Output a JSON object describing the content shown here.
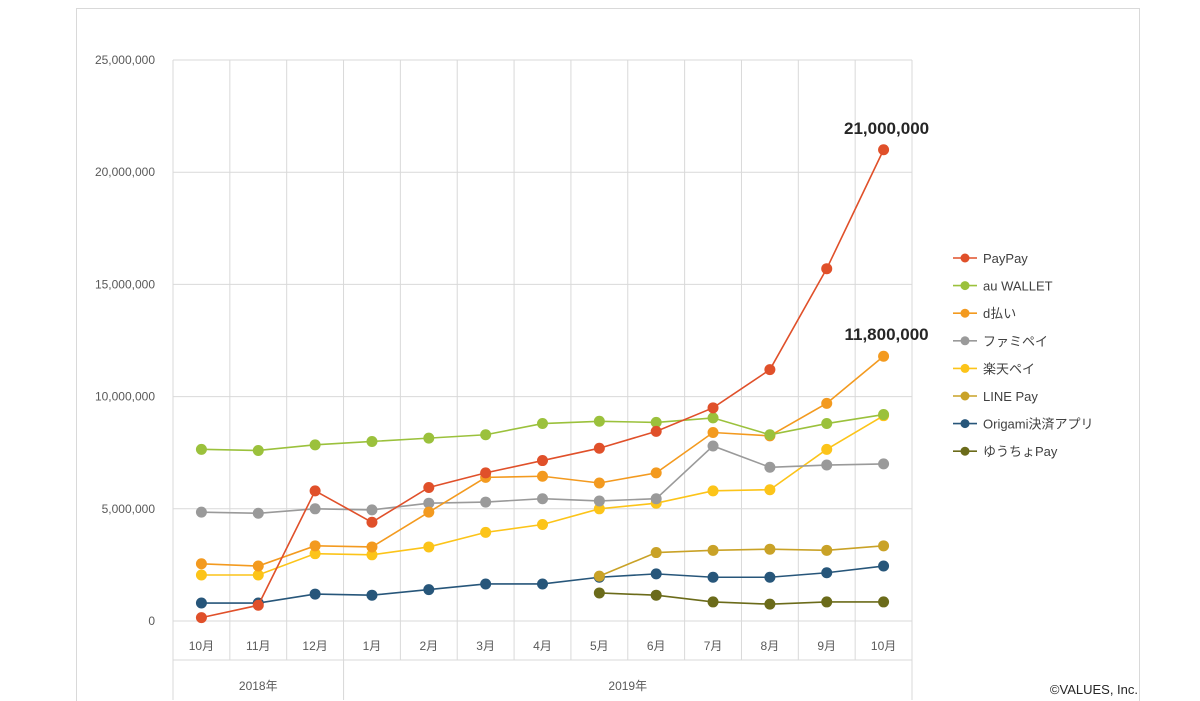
{
  "chart_data": {
    "type": "line",
    "categories": [
      "10月",
      "11月",
      "12月",
      "1月",
      "2月",
      "3月",
      "4月",
      "5月",
      "6月",
      "7月",
      "8月",
      "9月",
      "10月"
    ],
    "year_groups": [
      {
        "label": "2018年",
        "start": 0,
        "end": 2
      },
      {
        "label": "2019年",
        "start": 3,
        "end": 12
      }
    ],
    "ylim": [
      0,
      25000000
    ],
    "yticks": [
      {
        "value": 0,
        "label": "0"
      },
      {
        "value": 5000000,
        "label": "5,000,000"
      },
      {
        "value": 10000000,
        "label": "10,000,000"
      },
      {
        "value": 15000000,
        "label": "15,000,000"
      },
      {
        "value": 20000000,
        "label": "20,000,000"
      },
      {
        "value": 25000000,
        "label": "25,000,000"
      }
    ],
    "grid": true,
    "legend_position": "right",
    "series": [
      {
        "name": "PayPay",
        "color": "#e0502a",
        "values": [
          150000,
          700000,
          5800000,
          4400000,
          5950000,
          6600000,
          7150000,
          7700000,
          8450000,
          9500000,
          11200000,
          15700000,
          21000000
        ]
      },
      {
        "name": "au WALLET",
        "color": "#9bc13c",
        "values": [
          7650000,
          7600000,
          7850000,
          8000000,
          8150000,
          8300000,
          8800000,
          8900000,
          8850000,
          9050000,
          8300000,
          8800000,
          9200000
        ]
      },
      {
        "name": "d払い",
        "color": "#f39a1f",
        "values": [
          2550000,
          2450000,
          3350000,
          3300000,
          4850000,
          6400000,
          6450000,
          6150000,
          6600000,
          8400000,
          8250000,
          9700000,
          11800000
        ]
      },
      {
        "name": "ファミペイ",
        "color": "#9a9a9a",
        "values": [
          4850000,
          4800000,
          5000000,
          4950000,
          5250000,
          5300000,
          5450000,
          5350000,
          5450000,
          7800000,
          6850000,
          6950000,
          7000000
        ]
      },
      {
        "name": "楽天ペイ",
        "color": "#fcc419",
        "values": [
          2050000,
          2050000,
          3000000,
          2950000,
          3300000,
          3950000,
          4300000,
          5000000,
          5250000,
          5800000,
          5850000,
          7650000,
          9150000
        ]
      },
      {
        "name": "LINE Pay",
        "color": "#c9a227",
        "values": [
          null,
          null,
          null,
          null,
          null,
          null,
          null,
          2000000,
          3050000,
          3150000,
          3200000,
          3150000,
          3350000
        ]
      },
      {
        "name": "Origami決済アプリ",
        "color": "#27567a",
        "values": [
          800000,
          800000,
          1200000,
          1150000,
          1400000,
          1650000,
          1650000,
          1950000,
          2100000,
          1950000,
          1950000,
          2150000,
          2450000
        ]
      },
      {
        "name": "ゆうちょPay",
        "color": "#6b6b1a",
        "values": [
          null,
          null,
          null,
          null,
          null,
          null,
          null,
          1250000,
          1150000,
          850000,
          750000,
          850000,
          850000
        ]
      }
    ],
    "callouts": [
      {
        "text": "21,000,000",
        "series": 0,
        "index": 12
      },
      {
        "text": "11,800,000",
        "series": 2,
        "index": 12
      }
    ]
  },
  "copyright": "©VALUES, Inc."
}
